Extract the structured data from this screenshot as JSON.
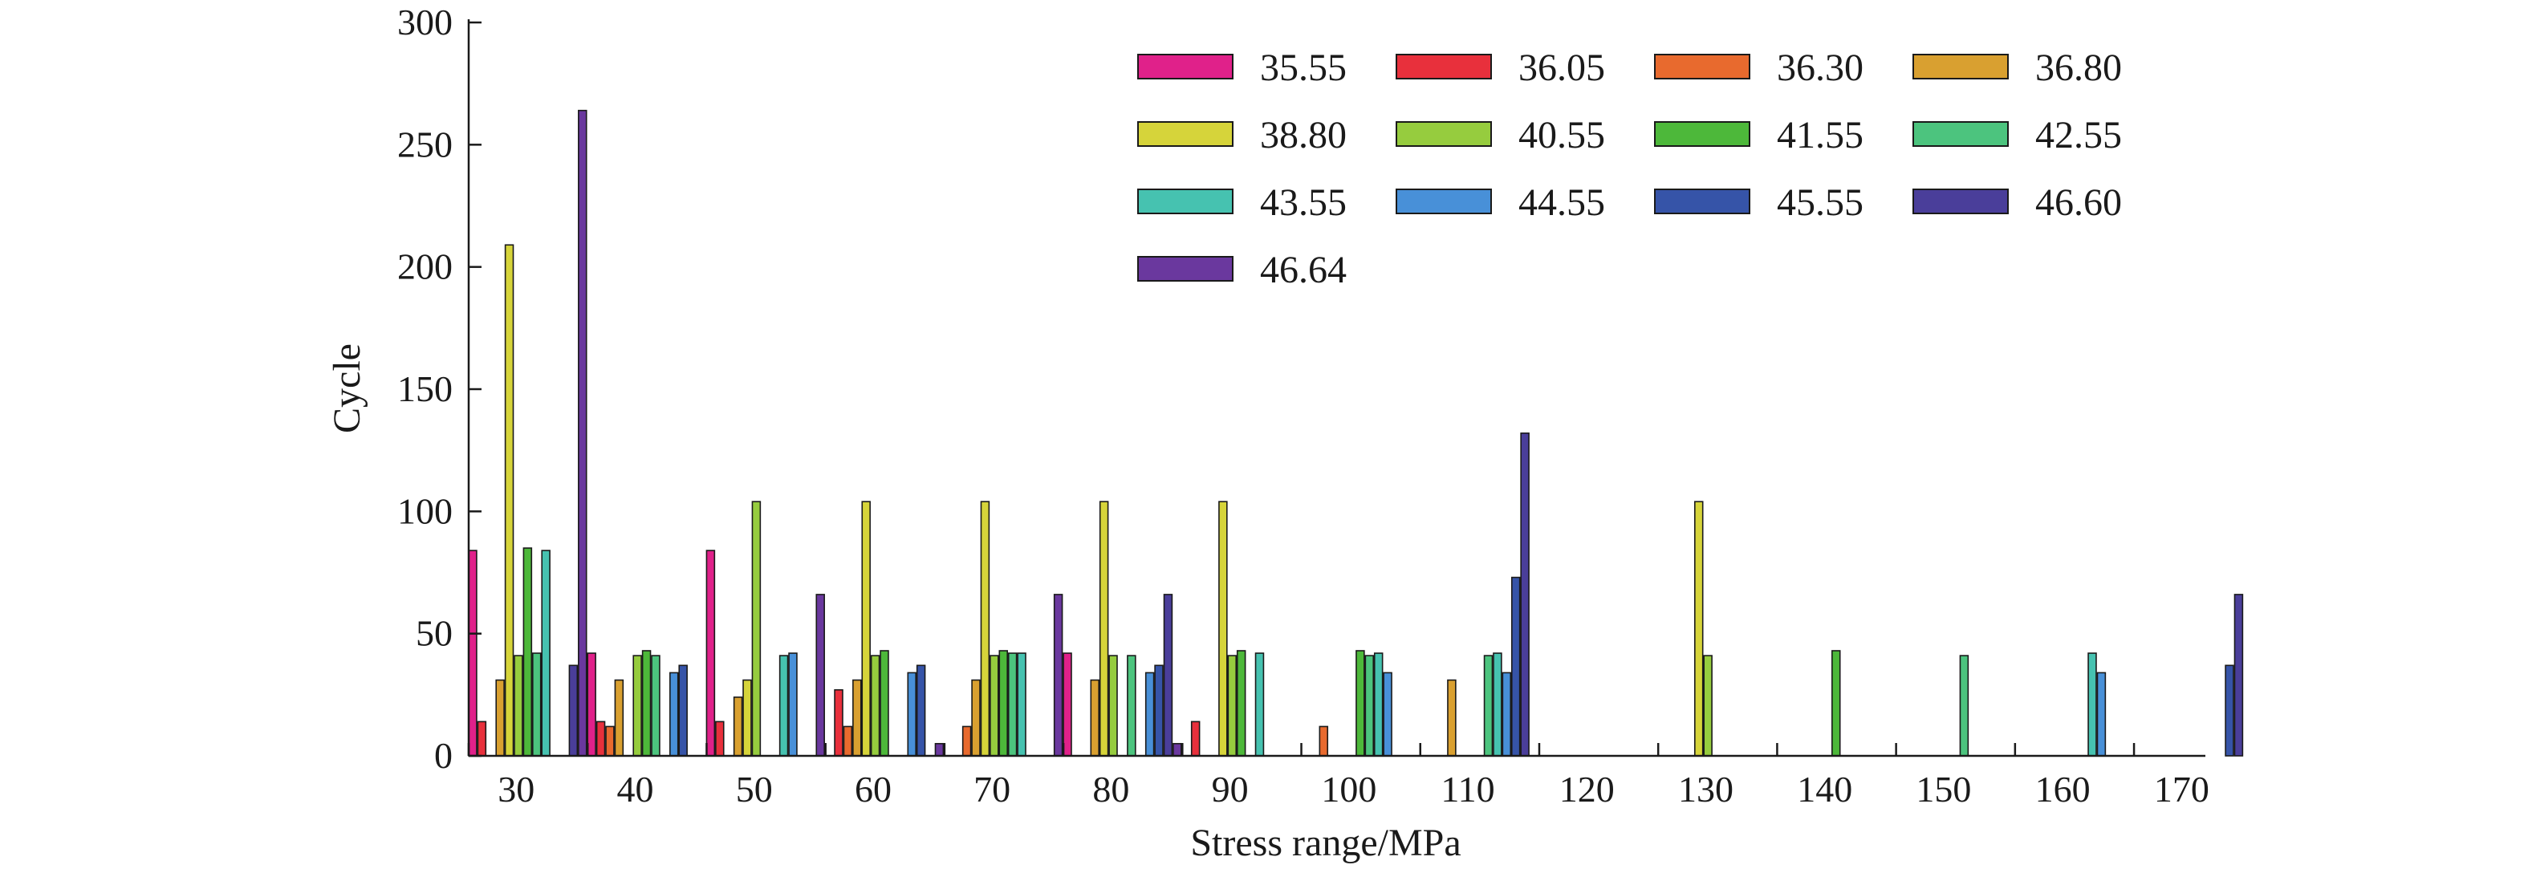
{
  "chart_data": {
    "type": "bar",
    "xlabel": "Stress range/MPa",
    "ylabel": "Cycle",
    "ylim": [
      0,
      300
    ],
    "yticks": [
      0,
      50,
      100,
      150,
      200,
      250,
      300
    ],
    "x_range": [
      26,
      172
    ],
    "xticks": [
      30,
      40,
      50,
      60,
      70,
      80,
      90,
      100,
      110,
      120,
      130,
      140,
      150,
      160,
      170
    ],
    "bin_edges": [
      26,
      36,
      46,
      56,
      66,
      76,
      86,
      96,
      106,
      116,
      126,
      136,
      146,
      156,
      166,
      176
    ],
    "legend_position": "top-right",
    "legend_columns": 4,
    "series": [
      {
        "name": "35.55",
        "color": "#e0218a",
        "values": [
          84,
          42,
          84,
          0,
          0,
          42,
          0,
          0,
          0,
          0,
          0,
          0,
          0,
          0,
          0
        ]
      },
      {
        "name": "36.05",
        "color": "#e8303c",
        "values": [
          14,
          14,
          14,
          27,
          0,
          0,
          14,
          0,
          0,
          0,
          0,
          0,
          0,
          0,
          0
        ]
      },
      {
        "name": "36.30",
        "color": "#e86a2e",
        "values": [
          0,
          12,
          0,
          12,
          12,
          0,
          0,
          12,
          0,
          0,
          0,
          0,
          0,
          0,
          0
        ]
      },
      {
        "name": "36.80",
        "color": "#d9a030",
        "values": [
          31,
          31,
          24,
          31,
          31,
          31,
          0,
          0,
          31,
          0,
          0,
          0,
          0,
          0,
          0
        ]
      },
      {
        "name": "38.80",
        "color": "#d6d43a",
        "values": [
          209,
          0,
          31,
          104,
          104,
          104,
          104,
          0,
          0,
          0,
          104,
          0,
          0,
          0,
          0
        ]
      },
      {
        "name": "40.55",
        "color": "#96cc3e",
        "values": [
          41,
          41,
          104,
          41,
          41,
          41,
          41,
          0,
          0,
          0,
          41,
          0,
          0,
          0,
          0
        ]
      },
      {
        "name": "41.55",
        "color": "#4db83a",
        "values": [
          85,
          43,
          0,
          43,
          43,
          0,
          43,
          43,
          0,
          0,
          0,
          43,
          0,
          0,
          0
        ]
      },
      {
        "name": "42.55",
        "color": "#4cc47e",
        "values": [
          42,
          41,
          0,
          0,
          42,
          41,
          0,
          41,
          41,
          0,
          0,
          0,
          41,
          0,
          0
        ]
      },
      {
        "name": "43.55",
        "color": "#46c2b0",
        "values": [
          84,
          0,
          41,
          0,
          42,
          0,
          42,
          42,
          42,
          0,
          0,
          0,
          0,
          42,
          0
        ]
      },
      {
        "name": "44.55",
        "color": "#4890d8",
        "values": [
          0,
          34,
          42,
          34,
          0,
          34,
          0,
          34,
          34,
          0,
          0,
          0,
          0,
          34,
          0
        ]
      },
      {
        "name": "45.55",
        "color": "#3654a8",
        "values": [
          0,
          37,
          0,
          37,
          0,
          37,
          0,
          0,
          73,
          0,
          0,
          0,
          0,
          0,
          37
        ]
      },
      {
        "name": "46.60",
        "color": "#4a3e9a",
        "values": [
          37,
          0,
          0,
          0,
          0,
          66,
          0,
          0,
          132,
          0,
          0,
          0,
          0,
          0,
          66
        ]
      },
      {
        "name": "46.64",
        "color": "#6a389e",
        "values": [
          264,
          0,
          66,
          5,
          66,
          5,
          0,
          0,
          0,
          0,
          0,
          0,
          0,
          0,
          0
        ]
      }
    ]
  }
}
